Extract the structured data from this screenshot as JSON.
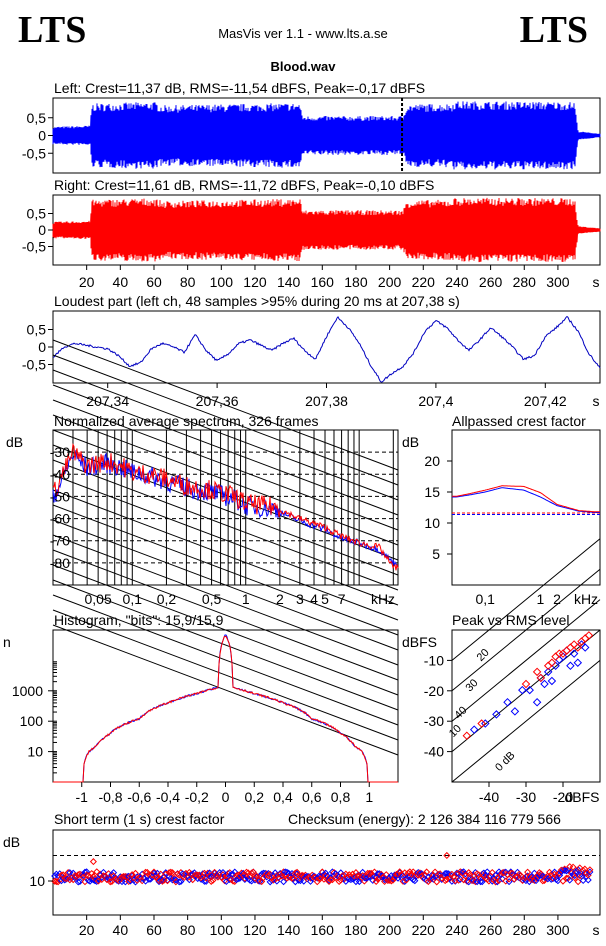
{
  "header": {
    "logo_left": "LTS",
    "logo_right": "LTS",
    "app_title": "MasVis ver 1.1 - www.lts.a.se",
    "file_name": "Blood.wav"
  },
  "colors": {
    "left": "#0000ff",
    "right": "#ff0000",
    "blue_line": "#0000c0"
  },
  "panels": {
    "left_title": "Left: Crest=11,37 dB, RMS=-11,54 dBFS, Peak=-0,17 dBFS",
    "right_title": "Right: Crest=11,61 dB, RMS=-11,72 dBFS, Peak=-0,10 dBFS",
    "loudest_title": "Loudest part (left  ch, 48 samples >95% during 20 ms at 207,38 s)",
    "spectrum_title": "Normalized average spectrum, 326 frames",
    "allpass_title": "Allpassed crest factor",
    "histogram_title": "Histogram, \"bits\": 15,9/15,9",
    "peakrms_title": "Peak vs RMS level",
    "shortterm_title": "Short term (1 s) crest factor",
    "checksum": "Checksum (energy):  2 126 384 116 779 566"
  },
  "chart_data": [
    {
      "type": "area",
      "id": "left_waveform",
      "title": "Left: Crest=11,37 dB, RMS=-11,54 dBFS, Peak=-0,17 dBFS",
      "yticks": [
        "0,5",
        "0",
        "-0,5"
      ],
      "ylim": [
        -1,
        1
      ],
      "xlim": [
        0,
        325
      ],
      "marker_x": 207.38,
      "envelope": {
        "x": [
          0,
          22,
          23,
          60,
          65,
          147,
          148,
          208,
          210,
          237,
          238,
          310,
          312,
          325
        ],
        "amp": [
          0.25,
          0.28,
          0.9,
          0.95,
          0.85,
          0.92,
          0.55,
          0.55,
          0.88,
          0.9,
          0.97,
          0.95,
          0.12,
          0.05
        ]
      }
    },
    {
      "type": "area",
      "id": "right_waveform",
      "title": "Right: Crest=11,61 dB, RMS=-11,72 dBFS, Peak=-0,10 dBFS",
      "yticks": [
        "0,5",
        "0",
        "-0,5"
      ],
      "ylim": [
        -1,
        1
      ],
      "xlim": [
        0,
        325
      ],
      "xticks": [
        "20",
        "40",
        "60",
        "80",
        "100",
        "120",
        "140",
        "160",
        "180",
        "200",
        "220",
        "240",
        "260",
        "280",
        "300"
      ],
      "xunit": "s",
      "envelope": {
        "x": [
          0,
          22,
          23,
          60,
          65,
          147,
          148,
          208,
          210,
          237,
          238,
          310,
          312,
          325
        ],
        "amp": [
          0.25,
          0.28,
          0.92,
          0.97,
          0.88,
          0.95,
          0.6,
          0.6,
          0.9,
          0.92,
          0.98,
          0.97,
          0.12,
          0.05
        ]
      }
    },
    {
      "type": "line",
      "id": "loudest_part",
      "title": "Loudest part (left  ch, 48 samples >95% during 20 ms at 207,38 s)",
      "yticks": [
        "0,5",
        "0",
        "-0,5"
      ],
      "ylim": [
        -1,
        1
      ],
      "xlim": [
        207.33,
        207.43
      ],
      "xticks": [
        "207,34",
        "207,36",
        "207,38",
        "207,4",
        "207,42"
      ],
      "xunit": "s",
      "x": [
        207.33,
        207.332,
        207.334,
        207.336,
        207.338,
        207.34,
        207.342,
        207.344,
        207.346,
        207.348,
        207.35,
        207.352,
        207.354,
        207.356,
        207.358,
        207.36,
        207.362,
        207.364,
        207.366,
        207.368,
        207.37,
        207.372,
        207.374,
        207.376,
        207.378,
        207.38,
        207.382,
        207.384,
        207.386,
        207.388,
        207.39,
        207.392,
        207.394,
        207.396,
        207.398,
        207.4,
        207.402,
        207.404,
        207.406,
        207.408,
        207.41,
        207.412,
        207.414,
        207.416,
        207.418,
        207.42,
        207.422,
        207.424,
        207.426,
        207.428,
        207.43
      ],
      "y": [
        -0.3,
        0.0,
        0.1,
        0.05,
        0.0,
        -0.05,
        -0.25,
        -0.55,
        -0.45,
        -0.05,
        0.1,
        0.0,
        -0.15,
        0.35,
        -0.1,
        -0.4,
        -0.2,
        0.1,
        0.2,
        0.05,
        -0.1,
        0.1,
        0.25,
        -0.1,
        -0.35,
        0.3,
        0.85,
        0.55,
        0.1,
        -0.5,
        -1.0,
        -0.75,
        -0.55,
        -0.15,
        0.45,
        0.75,
        0.55,
        0.2,
        -0.1,
        0.2,
        0.55,
        0.3,
        0.0,
        -0.35,
        -0.25,
        0.3,
        0.55,
        0.85,
        0.45,
        -0.2,
        -0.6
      ]
    },
    {
      "type": "line",
      "id": "avg_spectrum",
      "title": "Normalized average spectrum, 326 frames",
      "ylabel": "dB",
      "yticks": [
        "-30",
        "-40",
        "-50",
        "-60",
        "-70",
        "-80"
      ],
      "ylim": [
        -90,
        -20
      ],
      "xticks": [
        "0,05",
        "0,1",
        "0,2",
        "0,5",
        "1",
        "2",
        "3",
        "4",
        "5",
        "7"
      ],
      "xunit": "kHz",
      "xscale": "log",
      "series": [
        {
          "values_khz": [
            0.02,
            0.03,
            0.04,
            0.06,
            0.08,
            0.1,
            0.15,
            0.2,
            0.3,
            0.5,
            0.8,
            1,
            2,
            3,
            5,
            7,
            10,
            15,
            20
          ],
          "values_db": [
            -52,
            -32,
            -38,
            -36,
            -38,
            -40,
            -42,
            -44,
            -47,
            -49,
            -52,
            -55,
            -57,
            -61,
            -65,
            -69,
            -71,
            -74,
            -80
          ]
        },
        {
          "values_khz": [
            0.02,
            0.03,
            0.04,
            0.06,
            0.08,
            0.1,
            0.15,
            0.2,
            0.3,
            0.5,
            0.8,
            1,
            2,
            3,
            5,
            7,
            10,
            15,
            20
          ],
          "values_db": [
            -50,
            -31,
            -37,
            -35,
            -37,
            -40,
            -41,
            -43,
            -46,
            -48,
            -51,
            -54,
            -56,
            -60,
            -64,
            -68,
            -71,
            -73,
            -82
          ]
        }
      ]
    },
    {
      "type": "line",
      "id": "allpassed_crest",
      "title": "Allpassed crest factor",
      "ylabel": "dB",
      "yticks": [
        "20",
        "15",
        "10",
        "5"
      ],
      "ylim": [
        0,
        25
      ],
      "xticks": [
        "0,1",
        "1",
        "2",
        "kHz"
      ],
      "xscale": "log",
      "ref_lines_db": [
        11.37,
        11.61
      ],
      "series": [
        {
          "x_khz": [
            0.03,
            0.05,
            0.1,
            0.2,
            0.5,
            1,
            2,
            5,
            10
          ],
          "db": [
            14.2,
            14.5,
            15.0,
            15.7,
            15.3,
            14.2,
            12.8,
            11.9,
            11.7
          ]
        },
        {
          "x_khz": [
            0.03,
            0.05,
            0.1,
            0.2,
            0.5,
            1,
            2,
            5,
            10
          ],
          "db": [
            14.3,
            14.7,
            15.3,
            16.0,
            15.9,
            14.9,
            13.0,
            12.0,
            11.8
          ]
        }
      ]
    },
    {
      "type": "line",
      "id": "histogram",
      "title": "Histogram, \"bits\": 15,9/15,9",
      "ylabel": "n",
      "yscale": "log",
      "yticks": [
        "1000",
        "100",
        "10"
      ],
      "ylim": [
        1,
        100000
      ],
      "xticks": [
        "-1",
        "-0,8",
        "-0,6",
        "-0,4",
        "-0,2",
        "0",
        "0,2",
        "0,4",
        "0,6",
        "0,8",
        "1"
      ],
      "xlim": [
        -1.2,
        1.2
      ],
      "x": [
        -1.0,
        -0.95,
        -0.9,
        -0.8,
        -0.6,
        -0.4,
        -0.2,
        -0.05,
        0,
        0.05,
        0.2,
        0.4,
        0.6,
        0.8,
        0.9,
        0.95,
        1.0
      ],
      "y": [
        1,
        10,
        15,
        40,
        120,
        400,
        800,
        1300,
        70000,
        1300,
        800,
        400,
        120,
        40,
        15,
        10,
        1
      ]
    },
    {
      "type": "scatter",
      "id": "peak_vs_rms",
      "title": "Peak vs RMS level",
      "ylabel": "dBFS",
      "yticks": [
        "-10",
        "-20",
        "-30",
        "-40"
      ],
      "ylim": [
        -50,
        0
      ],
      "xticks": [
        "-40",
        "-30",
        "-20",
        "dBFS"
      ],
      "xlim": [
        -50,
        -10
      ],
      "diag_labels": [
        "40",
        "30",
        "20",
        "10",
        "0 dB"
      ],
      "left": {
        "x": [
          -44,
          -41,
          -38,
          -35,
          -33,
          -31,
          -29,
          -27,
          -26,
          -25,
          -24,
          -23,
          -22,
          -21,
          -20,
          -19,
          -18,
          -17,
          -16,
          -15,
          -14
        ],
        "y": [
          -33,
          -31,
          -28,
          -24,
          -27,
          -20,
          -20,
          -24,
          -16,
          -18,
          -14,
          -17,
          -12,
          -10,
          -9,
          -7,
          -12,
          -8,
          -11,
          -5,
          -6
        ]
      },
      "right": {
        "x": [
          -46,
          -42,
          -30,
          -27,
          -26,
          -24,
          -23,
          -22,
          -21,
          -20,
          -19,
          -18,
          -17,
          -16,
          -15,
          -14,
          -13
        ],
        "y": [
          -35,
          -31,
          -18,
          -14,
          -16,
          -12,
          -11,
          -9,
          -8,
          -8,
          -7,
          -6,
          -5,
          -6,
          -4,
          -3,
          -2
        ]
      }
    },
    {
      "type": "scatter",
      "id": "short_term_crest",
      "title": "Short term (1 s) crest factor",
      "ylabel": "dB",
      "yticks": [
        "10"
      ],
      "ylim": [
        0,
        25
      ],
      "ref_line_db": 17.5,
      "xticks": [
        "20",
        "40",
        "60",
        "80",
        "100",
        "120",
        "140",
        "160",
        "180",
        "200",
        "220",
        "240",
        "260",
        "280",
        "300"
      ],
      "xunit": "s",
      "xlim": [
        0,
        325
      ],
      "outliers": [
        {
          "x": 24,
          "db": 15.5
        },
        {
          "x": 234,
          "db": 17.3
        }
      ]
    }
  ]
}
